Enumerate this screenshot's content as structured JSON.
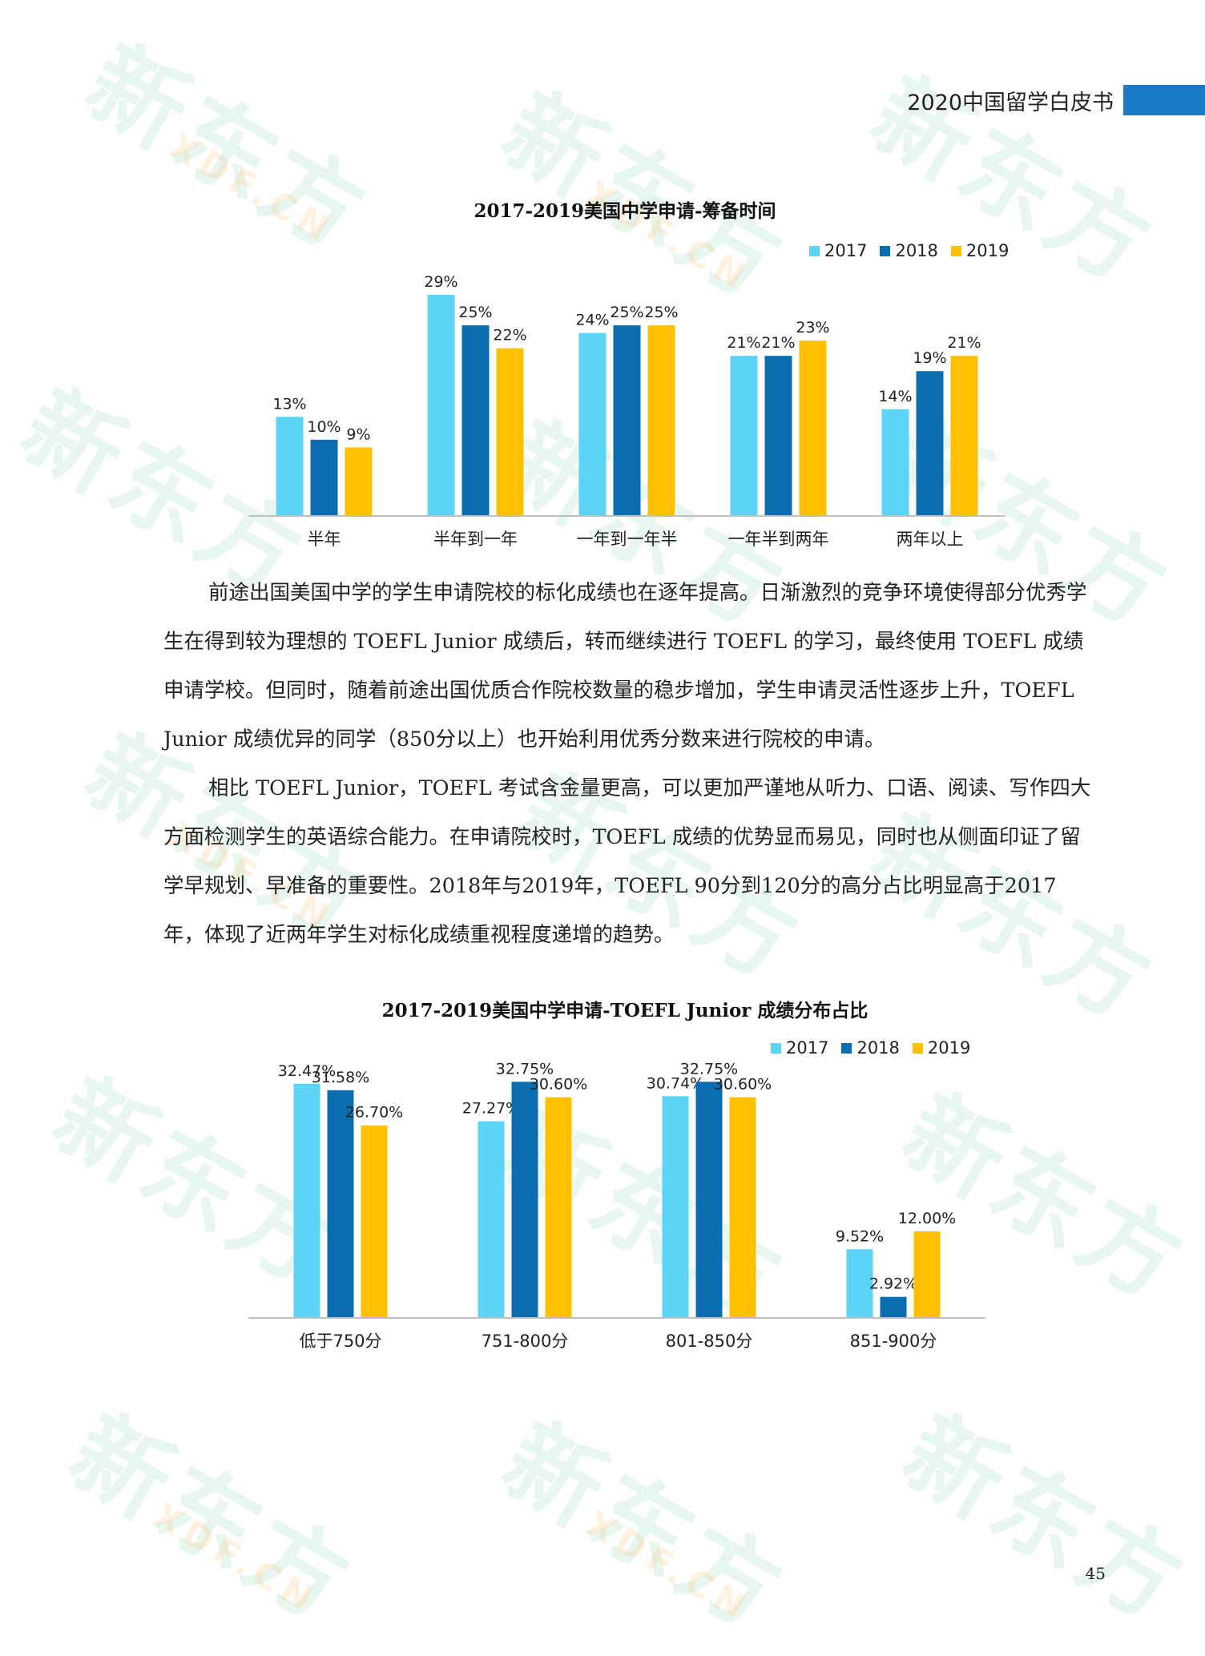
{
  "header": {
    "title": "2020中国留学白皮书"
  },
  "watermark": {
    "main": "新东方",
    "sub": "XDF.CN"
  },
  "colors": {
    "y2017": "#5ad3f5",
    "y2018": "#0b6cb0",
    "y2019": "#ffc000",
    "accent": "#1b7bc8"
  },
  "chart_data": [
    {
      "type": "bar",
      "title": "2017-2019美国中学申请-筹备时间",
      "categories": [
        "半年",
        "半年到一年",
        "一年到一年半",
        "一年半到两年",
        "两年以上"
      ],
      "series": [
        {
          "name": "2017",
          "values": [
            13,
            29,
            24,
            21,
            14
          ],
          "labels": [
            "13%",
            "29%",
            "24%",
            "21%",
            "14%"
          ]
        },
        {
          "name": "2018",
          "values": [
            10,
            25,
            25,
            21,
            19
          ],
          "labels": [
            "10%",
            "25%",
            "25%",
            "21%",
            "19%"
          ]
        },
        {
          "name": "2019",
          "values": [
            9,
            22,
            25,
            23,
            21
          ],
          "labels": [
            "9%",
            "22%",
            "25%",
            "23%",
            "21%"
          ]
        }
      ],
      "ylim": [
        0,
        33
      ],
      "legend": "top-right",
      "grid": false,
      "xlabel": "",
      "ylabel": ""
    },
    {
      "type": "bar",
      "title": "2017-2019美国中学申请-TOEFL Junior 成绩分布占比",
      "categories": [
        "低于750分",
        "751-800分",
        "801-850分",
        "851-900分"
      ],
      "series": [
        {
          "name": "2017",
          "values": [
            32.47,
            27.27,
            30.74,
            9.52
          ],
          "labels": [
            "32.47%",
            "27.27%",
            "30.74%",
            "9.52%"
          ]
        },
        {
          "name": "2018",
          "values": [
            31.58,
            32.75,
            32.75,
            2.92
          ],
          "labels": [
            "31.58%",
            "32.75%",
            "32.75%",
            "2.92%"
          ]
        },
        {
          "name": "2019",
          "values": [
            26.7,
            30.6,
            30.6,
            12.0
          ],
          "labels": [
            "26.70%",
            "30.60%",
            "30.60%",
            "12.00%"
          ]
        }
      ],
      "ylim": [
        0,
        35
      ],
      "legend": "top-right",
      "grid": false,
      "xlabel": "",
      "ylabel": ""
    }
  ],
  "body": {
    "paragraphs": [
      "前途出国美国中学的学生申请院校的标化成绩也在逐年提高。日渐激烈的竞争环境使得部分优秀学生在得到较为理想的 TOEFL Junior 成绩后，转而继续进行 TOEFL 的学习，最终使用 TOEFL 成绩申请学校。但同时，随着前途出国优质合作院校数量的稳步增加，学生申请灵活性逐步上升，TOEFL Junior 成绩优异的同学（850分以上）也开始利用优秀分数来进行院校的申请。",
      "相比 TOEFL Junior，TOEFL 考试含金量更高，可以更加严谨地从听力、口语、阅读、写作四大方面检测学生的英语综合能力。在申请院校时，TOEFL 成绩的优势显而易见，同时也从侧面印证了留学早规划、早准备的重要性。2018年与2019年，TOEFL 90分到120分的高分占比明显高于2017年，体现了近两年学生对标化成绩重视程度递增的趋势。"
    ]
  },
  "page_number": "45"
}
